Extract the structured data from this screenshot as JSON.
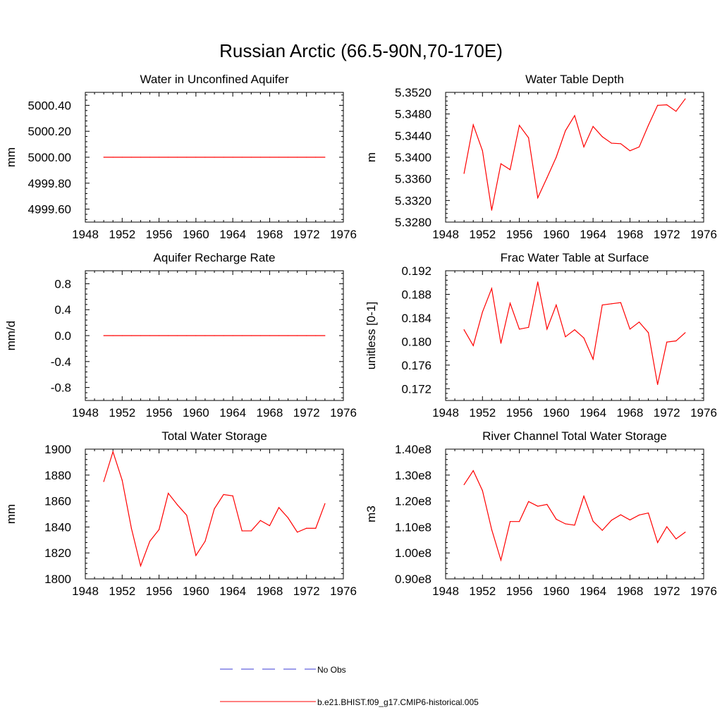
{
  "figure": {
    "title": "Russian Arctic (66.5-90N,70-170E)"
  },
  "legend": [
    {
      "label": "No Obs",
      "color": "#3b3bd6",
      "style": "dashed"
    },
    {
      "label": "b.e21.BHIST.f09_g17.CMIP6-historical.005",
      "color": "#ff0000",
      "style": "solid"
    }
  ],
  "chart_data": [
    {
      "type": "line",
      "title": "Water in Unconfined Aquifer",
      "ylabel": "mm",
      "xlim": [
        1948,
        1976
      ],
      "ylim": [
        4999.5,
        5000.5
      ],
      "yticks": [
        "4999.60",
        "4999.80",
        "5000.00",
        "5000.20",
        "5000.40"
      ],
      "ytick_values": [
        4999.6,
        4999.8,
        5000.0,
        5000.2,
        5000.4
      ],
      "xticks": [
        1948,
        1952,
        1956,
        1960,
        1964,
        1968,
        1972,
        1976
      ],
      "series": [
        {
          "color": "#ff0000",
          "x": [
            1950,
            1951,
            1952,
            1953,
            1954,
            1955,
            1956,
            1957,
            1958,
            1959,
            1960,
            1961,
            1962,
            1963,
            1964,
            1965,
            1966,
            1967,
            1968,
            1969,
            1970,
            1971,
            1972,
            1973,
            1974
          ],
          "values": [
            5000,
            5000,
            5000,
            5000,
            5000,
            5000,
            5000,
            5000,
            5000,
            5000,
            5000,
            5000,
            5000,
            5000,
            5000,
            5000,
            5000,
            5000,
            5000,
            5000,
            5000,
            5000,
            5000,
            5000,
            5000
          ]
        }
      ]
    },
    {
      "type": "line",
      "title": "Water Table Depth",
      "ylabel": "m",
      "xlim": [
        1948,
        1976
      ],
      "ylim": [
        5.328,
        5.352
      ],
      "yticks": [
        "5.3280",
        "5.3320",
        "5.3360",
        "5.3400",
        "5.3440",
        "5.3480",
        "5.3520"
      ],
      "ytick_values": [
        5.328,
        5.332,
        5.336,
        5.34,
        5.344,
        5.348,
        5.352
      ],
      "xticks": [
        1948,
        1952,
        1956,
        1960,
        1964,
        1968,
        1972,
        1976
      ],
      "series": [
        {
          "color": "#ff0000",
          "x": [
            1950,
            1951,
            1952,
            1953,
            1954,
            1955,
            1956,
            1957,
            1958,
            1959,
            1960,
            1961,
            1962,
            1963,
            1964,
            1965,
            1966,
            1967,
            1968,
            1969,
            1970,
            1971,
            1972,
            1973,
            1974
          ],
          "values": [
            5.337,
            5.346,
            5.3412,
            5.3302,
            5.3388,
            5.3377,
            5.3459,
            5.3436,
            5.3325,
            5.3362,
            5.34,
            5.3449,
            5.3477,
            5.3419,
            5.3457,
            5.3438,
            5.3426,
            5.3425,
            5.3412,
            5.3419,
            5.3459,
            5.3496,
            5.3497,
            5.3485,
            5.3508
          ]
        }
      ]
    },
    {
      "type": "line",
      "title": "Aquifer Recharge Rate",
      "ylabel": "mm/d",
      "xlim": [
        1948,
        1976
      ],
      "ylim": [
        -1.0,
        1.0
      ],
      "yticks": [
        "-0.8",
        "-0.4",
        "0.0",
        "0.4",
        "0.8"
      ],
      "ytick_values": [
        -0.8,
        -0.4,
        0.0,
        0.4,
        0.8
      ],
      "xticks": [
        1948,
        1952,
        1956,
        1960,
        1964,
        1968,
        1972,
        1976
      ],
      "series": [
        {
          "color": "#ff0000",
          "x": [
            1950,
            1951,
            1952,
            1953,
            1954,
            1955,
            1956,
            1957,
            1958,
            1959,
            1960,
            1961,
            1962,
            1963,
            1964,
            1965,
            1966,
            1967,
            1968,
            1969,
            1970,
            1971,
            1972,
            1973,
            1974
          ],
          "values": [
            0,
            0,
            0,
            0,
            0,
            0,
            0,
            0,
            0,
            0,
            0,
            0,
            0,
            0,
            0,
            0,
            0,
            0,
            0,
            0,
            0,
            0,
            0,
            0,
            0
          ]
        }
      ]
    },
    {
      "type": "line",
      "title": "Frac Water Table at Surface",
      "ylabel": "unitless [0-1]",
      "xlim": [
        1948,
        1976
      ],
      "ylim": [
        0.17,
        0.192
      ],
      "yticks": [
        "0.172",
        "0.176",
        "0.180",
        "0.184",
        "0.188",
        "0.192"
      ],
      "ytick_values": [
        0.172,
        0.176,
        0.18,
        0.184,
        0.188,
        0.192
      ],
      "xticks": [
        1948,
        1952,
        1956,
        1960,
        1964,
        1968,
        1972,
        1976
      ],
      "series": [
        {
          "color": "#ff0000",
          "x": [
            1950,
            1951,
            1952,
            1953,
            1954,
            1955,
            1956,
            1957,
            1958,
            1959,
            1960,
            1961,
            1962,
            1963,
            1964,
            1965,
            1966,
            1967,
            1968,
            1969,
            1970,
            1971,
            1972,
            1973,
            1974
          ],
          "values": [
            0.182,
            0.1793,
            0.185,
            0.189,
            0.1797,
            0.1865,
            0.1821,
            0.1824,
            0.1901,
            0.1821,
            0.1862,
            0.1808,
            0.182,
            0.1806,
            0.177,
            0.1862,
            0.1864,
            0.1866,
            0.1821,
            0.1833,
            0.1815,
            0.1727,
            0.1799,
            0.1801,
            0.1815
          ]
        }
      ]
    },
    {
      "type": "line",
      "title": "Total Water Storage",
      "ylabel": "mm",
      "xlim": [
        1948,
        1976
      ],
      "ylim": [
        1800,
        1900
      ],
      "yticks": [
        "1800",
        "1820",
        "1840",
        "1860",
        "1880",
        "1900"
      ],
      "ytick_values": [
        1800,
        1820,
        1840,
        1860,
        1880,
        1900
      ],
      "xticks": [
        1948,
        1952,
        1956,
        1960,
        1964,
        1968,
        1972,
        1976
      ],
      "series": [
        {
          "color": "#ff0000",
          "x": [
            1950,
            1951,
            1952,
            1953,
            1954,
            1955,
            1956,
            1957,
            1958,
            1959,
            1960,
            1961,
            1962,
            1963,
            1964,
            1965,
            1966,
            1967,
            1968,
            1969,
            1970,
            1971,
            1972,
            1973,
            1974
          ],
          "values": [
            1875,
            1898,
            1876,
            1839,
            1810,
            1829,
            1838,
            1866,
            1857,
            1849,
            1818,
            1829,
            1854,
            1865,
            1864,
            1837,
            1837,
            1845,
            1841,
            1855,
            1847,
            1836,
            1839,
            1839,
            1858
          ]
        }
      ]
    },
    {
      "type": "line",
      "title": "River Channel Total Water Storage",
      "ylabel": "m3",
      "xlim": [
        1948,
        1976
      ],
      "ylim": [
        90000000.0,
        140000000.0
      ],
      "yticks": [
        "0.90e8",
        "1.00e8",
        "1.10e8",
        "1.20e8",
        "1.30e8",
        "1.40e8"
      ],
      "ytick_values": [
        90000000.0,
        100000000.0,
        110000000.0,
        120000000.0,
        130000000.0,
        140000000.0
      ],
      "xticks": [
        1948,
        1952,
        1956,
        1960,
        1964,
        1968,
        1972,
        1976
      ],
      "series": [
        {
          "color": "#ff0000",
          "x": [
            1950,
            1951,
            1952,
            1953,
            1954,
            1955,
            1956,
            1957,
            1958,
            1959,
            1960,
            1961,
            1962,
            1963,
            1964,
            1965,
            1966,
            1967,
            1968,
            1969,
            1970,
            1971,
            1972,
            1973,
            1974
          ],
          "values": [
            126300000.0,
            131700000.0,
            124000000.0,
            109000000.0,
            97200000.0,
            112100000.0,
            112100000.0,
            119800000.0,
            118000000.0,
            118700000.0,
            113000000.0,
            111200000.0,
            110700000.0,
            121900000.0,
            112200000.0,
            108700000.0,
            112600000.0,
            114700000.0,
            112700000.0,
            114600000.0,
            115400000.0,
            104000000.0,
            110100000.0,
            105400000.0,
            108000000.0
          ]
        }
      ]
    }
  ]
}
